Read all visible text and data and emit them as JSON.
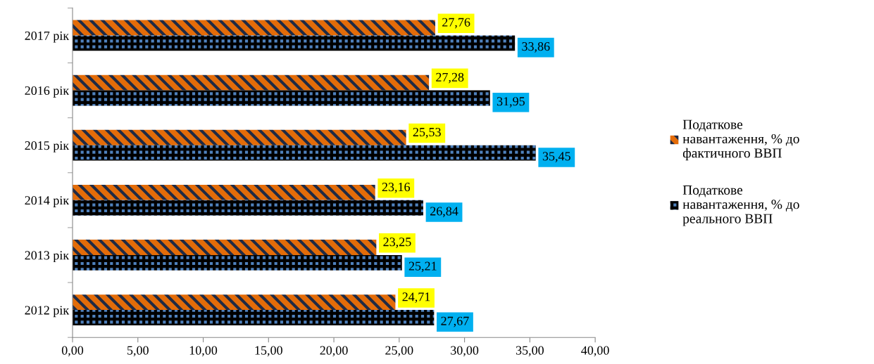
{
  "chart_data": {
    "type": "bar",
    "orientation": "horizontal",
    "categories": [
      "2017 рік",
      "2016 рік",
      "2015 рік",
      "2014 рік",
      "2013 рік",
      "2012 рік"
    ],
    "series": [
      {
        "name": "Податкове\nнавантаження, % до\nфактичного ВВП",
        "color": "#e36c09",
        "values": [
          27.76,
          27.28,
          25.53,
          23.16,
          23.25,
          24.71
        ],
        "value_labels": [
          "27,76",
          "27,28",
          "25,53",
          "23,16",
          "23,25",
          "24,71"
        ]
      },
      {
        "name": "Податкове\nнавантаження, % до\nреального ВВП",
        "color": "#4f81bd",
        "values": [
          33.86,
          31.95,
          35.45,
          26.84,
          25.21,
          27.67
        ],
        "value_labels": [
          "33,86",
          "31,95",
          "35,45",
          "26,84",
          "25,21",
          "27,67"
        ]
      }
    ],
    "xlim": [
      0,
      40
    ],
    "xticks": [
      {
        "value": 0,
        "label": "0,00"
      },
      {
        "value": 5,
        "label": "5,00"
      },
      {
        "value": 10,
        "label": "10,00"
      },
      {
        "value": 15,
        "label": "15,00"
      },
      {
        "value": 20,
        "label": "20,00"
      },
      {
        "value": 25,
        "label": "25,00"
      },
      {
        "value": 30,
        "label": "30,00"
      },
      {
        "value": 35,
        "label": "35,00"
      },
      {
        "value": 40,
        "label": "40,00"
      }
    ],
    "grid": false,
    "legend": "right"
  }
}
